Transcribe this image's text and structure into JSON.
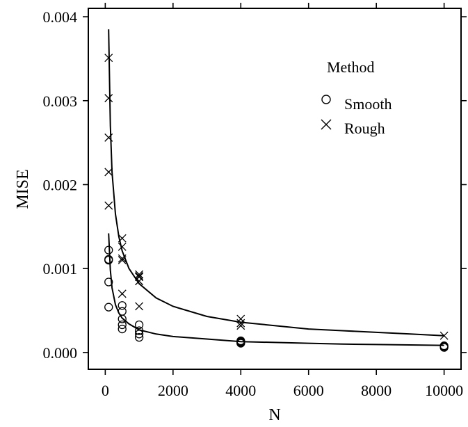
{
  "chart_data": {
    "type": "scatter",
    "title": "",
    "xlabel": "N",
    "ylabel": "MISE",
    "xlim": [
      -500,
      10500
    ],
    "ylim": [
      -0.0002,
      0.0041
    ],
    "x_ticks": [
      0,
      2000,
      4000,
      6000,
      8000,
      10000
    ],
    "x_tick_labels": [
      "0",
      "2000",
      "4000",
      "6000",
      "8000",
      "10000"
    ],
    "y_ticks": [
      0,
      0.001,
      0.002,
      0.003,
      0.004
    ],
    "y_tick_labels": [
      "0.000",
      "0.001",
      "0.002",
      "0.003",
      "0.004"
    ],
    "grid": false,
    "legend": {
      "title": "Method",
      "placement": "top-right",
      "entries": [
        {
          "label": "Smooth",
          "marker": "circle"
        },
        {
          "label": "Rough",
          "marker": "cross"
        }
      ]
    },
    "series": [
      {
        "name": "Smooth",
        "marker": "circle",
        "points": [
          [
            100,
            0.00122
          ],
          [
            100,
            0.00111
          ],
          [
            100,
            0.0011
          ],
          [
            100,
            0.00084
          ],
          [
            100,
            0.00054
          ],
          [
            500,
            0.00056
          ],
          [
            500,
            0.00049
          ],
          [
            500,
            0.0004
          ],
          [
            500,
            0.00033
          ],
          [
            500,
            0.00028
          ],
          [
            1000,
            0.00033
          ],
          [
            1000,
            0.00026
          ],
          [
            1000,
            0.00022
          ],
          [
            1000,
            0.00018
          ],
          [
            4000,
            0.00014
          ],
          [
            4000,
            0.00013
          ],
          [
            4000,
            0.00012
          ],
          [
            4000,
            0.00011
          ],
          [
            10000,
            8e-05
          ],
          [
            10000,
            7e-05
          ],
          [
            10000,
            6e-05
          ]
        ],
        "fit": [
          [
            100,
            0.00142
          ],
          [
            150,
            0.00098
          ],
          [
            200,
            0.00077
          ],
          [
            300,
            0.00057
          ],
          [
            400,
            0.00047
          ],
          [
            500,
            0.00041
          ],
          [
            700,
            0.00034
          ],
          [
            1000,
            0.00027
          ],
          [
            1500,
            0.00022
          ],
          [
            2000,
            0.00019
          ],
          [
            3000,
            0.00016
          ],
          [
            4000,
            0.00013
          ],
          [
            5000,
            0.00012
          ],
          [
            6000,
            0.00011
          ],
          [
            7000,
            0.0001
          ],
          [
            8000,
            9.5e-05
          ],
          [
            9000,
            9e-05
          ],
          [
            10000,
            8.5e-05
          ]
        ]
      },
      {
        "name": "Rough",
        "marker": "cross",
        "points": [
          [
            100,
            0.00351
          ],
          [
            100,
            0.00303
          ],
          [
            100,
            0.00256
          ],
          [
            100,
            0.00215
          ],
          [
            100,
            0.00175
          ],
          [
            500,
            0.00136
          ],
          [
            500,
            0.00126
          ],
          [
            500,
            0.00112
          ],
          [
            500,
            0.0011
          ],
          [
            500,
            0.0007
          ],
          [
            1000,
            0.00093
          ],
          [
            1000,
            0.00091
          ],
          [
            1000,
            0.0009
          ],
          [
            1000,
            0.00085
          ],
          [
            1000,
            0.00055
          ],
          [
            4000,
            0.0004
          ],
          [
            4000,
            0.00035
          ],
          [
            4000,
            0.00032
          ],
          [
            10000,
            0.0002
          ]
        ],
        "fit": [
          [
            100,
            0.00385
          ],
          [
            150,
            0.0027
          ],
          [
            200,
            0.00215
          ],
          [
            300,
            0.00165
          ],
          [
            400,
            0.00138
          ],
          [
            500,
            0.00121
          ],
          [
            700,
            0.001
          ],
          [
            1000,
            0.00082
          ],
          [
            1500,
            0.00065
          ],
          [
            2000,
            0.00055
          ],
          [
            3000,
            0.00043
          ],
          [
            4000,
            0.00036
          ],
          [
            5000,
            0.00032
          ],
          [
            6000,
            0.00028
          ],
          [
            7000,
            0.00026
          ],
          [
            8000,
            0.00024
          ],
          [
            9000,
            0.00022
          ],
          [
            10000,
            0.0002
          ]
        ]
      }
    ]
  }
}
